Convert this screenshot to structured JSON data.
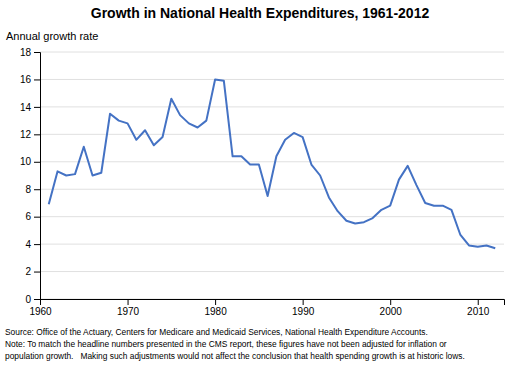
{
  "chart_data": {
    "type": "line",
    "title": "Growth in National Health Expenditures, 1961-2012",
    "ylabel": "Annual growth rate",
    "annotations": [
      "Source: Office of the Actuary, Centers for Medicare and Medicaid Services, National Health Expenditure Accounts.",
      "Note: To match the headline numbers presented in the CMS report, these figures have not been adjusted for inflation or",
      "population growth.   Making such adjustments would not affect the conclusion that health spending growth is at historic lows."
    ],
    "color": "#4472C4",
    "xlim": [
      1960,
      2013
    ],
    "ylim": [
      0,
      18
    ],
    "xticks": [
      1960,
      1970,
      1980,
      1990,
      2000,
      2010
    ],
    "yticks": [
      0,
      2,
      4,
      6,
      8,
      10,
      12,
      14,
      16,
      18
    ],
    "grid": "y",
    "x": [
      1961,
      1962,
      1963,
      1964,
      1965,
      1966,
      1967,
      1968,
      1969,
      1970,
      1971,
      1972,
      1973,
      1974,
      1975,
      1976,
      1977,
      1978,
      1979,
      1980,
      1981,
      1982,
      1983,
      1984,
      1985,
      1986,
      1987,
      1988,
      1989,
      1990,
      1991,
      1992,
      1993,
      1994,
      1995,
      1996,
      1997,
      1998,
      1999,
      2000,
      2001,
      2002,
      2003,
      2004,
      2005,
      2006,
      2007,
      2008,
      2009,
      2010,
      2011,
      2012
    ],
    "values": [
      6.9,
      9.3,
      9.0,
      9.1,
      11.1,
      9.0,
      9.2,
      13.5,
      13.0,
      12.8,
      11.6,
      12.3,
      11.2,
      11.8,
      14.6,
      13.4,
      12.8,
      12.5,
      13.0,
      16.0,
      15.9,
      10.4,
      10.4,
      9.8,
      9.8,
      7.5,
      10.4,
      11.6,
      12.1,
      11.8,
      9.8,
      9.0,
      7.4,
      6.4,
      5.7,
      5.5,
      5.6,
      5.9,
      6.5,
      6.8,
      8.7,
      9.7,
      8.3,
      7.0,
      6.8,
      6.8,
      6.5,
      4.7,
      3.9,
      3.8,
      3.9,
      3.7
    ]
  }
}
